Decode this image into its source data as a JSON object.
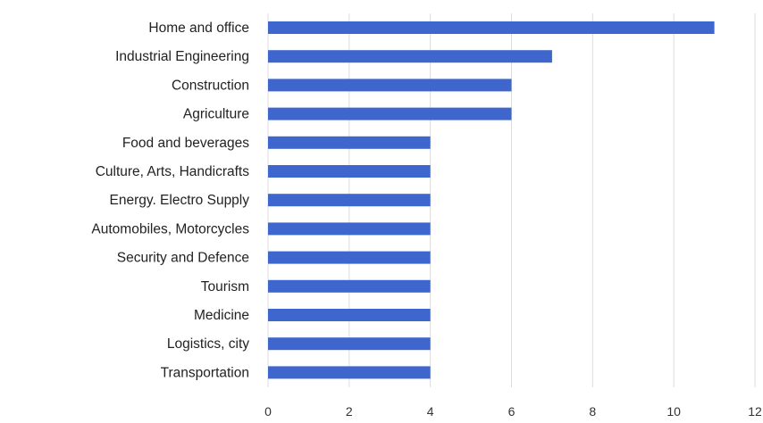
{
  "chart_data": {
    "type": "bar",
    "orientation": "horizontal",
    "title": "",
    "xlabel": "",
    "ylabel": "",
    "categories": [
      "Home and office",
      "Industrial Engineering",
      "Construction",
      "Agriculture",
      "Food and beverages",
      "Culture, Arts, Handicrafts",
      "Energy. Electro Supply",
      "Automobiles, Motorcycles",
      "Security and Defence",
      "Tourism",
      "Medicine",
      "Logistics, city",
      "Transportation"
    ],
    "values": [
      11,
      7,
      6,
      6,
      4,
      4,
      4,
      4,
      4,
      4,
      4,
      4,
      4
    ],
    "xlim": [
      0,
      12
    ],
    "xticks": [
      "0",
      "2",
      "4",
      "6",
      "8",
      "10",
      "12"
    ],
    "grid": "vertical",
    "legend": "none",
    "bar_color": "#3f66cc",
    "grid_color": "#dcdcdc"
  }
}
